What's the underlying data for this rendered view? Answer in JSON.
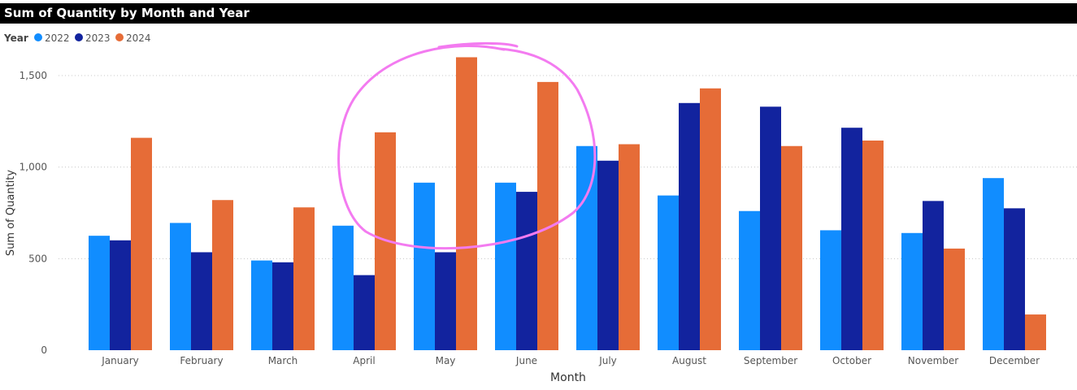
{
  "title": "Sum of Quantity by Month and Year",
  "colors": {
    "2022": "#118DFF",
    "2023": "#12239E",
    "2024": "#E66C37",
    "annotation": "#F37BF0",
    "grid": "#C8C8C8"
  },
  "chart_data": {
    "type": "bar",
    "title": "Sum of Quantity by Month and Year",
    "legend_title": "Year",
    "legend_position": "top-left",
    "xlabel": "Month",
    "ylabel": "Sum of Quantity",
    "ylim": [
      0,
      1700
    ],
    "yticks": [
      0,
      500,
      1000,
      1500
    ],
    "ytick_labels": [
      "0",
      "500",
      "1,000",
      "1,500"
    ],
    "grid": true,
    "categories": [
      "January",
      "February",
      "March",
      "April",
      "May",
      "June",
      "July",
      "August",
      "September",
      "October",
      "November",
      "December"
    ],
    "series": [
      {
        "name": "2022",
        "color": "#118DFF",
        "values": [
          625,
          695,
          490,
          680,
          915,
          915,
          1115,
          845,
          760,
          655,
          640,
          940
        ]
      },
      {
        "name": "2023",
        "color": "#12239E",
        "values": [
          600,
          535,
          480,
          410,
          535,
          865,
          1035,
          1350,
          1330,
          1215,
          815,
          775
        ]
      },
      {
        "name": "2024",
        "color": "#E66C37",
        "values": [
          1160,
          820,
          780,
          1190,
          1600,
          1465,
          1125,
          1430,
          1115,
          1145,
          555,
          195
        ]
      }
    ],
    "annotations": [
      {
        "type": "freehand-circle",
        "color": "#F37BF0",
        "highlights": [
          "April",
          "May",
          "June"
        ]
      }
    ]
  }
}
